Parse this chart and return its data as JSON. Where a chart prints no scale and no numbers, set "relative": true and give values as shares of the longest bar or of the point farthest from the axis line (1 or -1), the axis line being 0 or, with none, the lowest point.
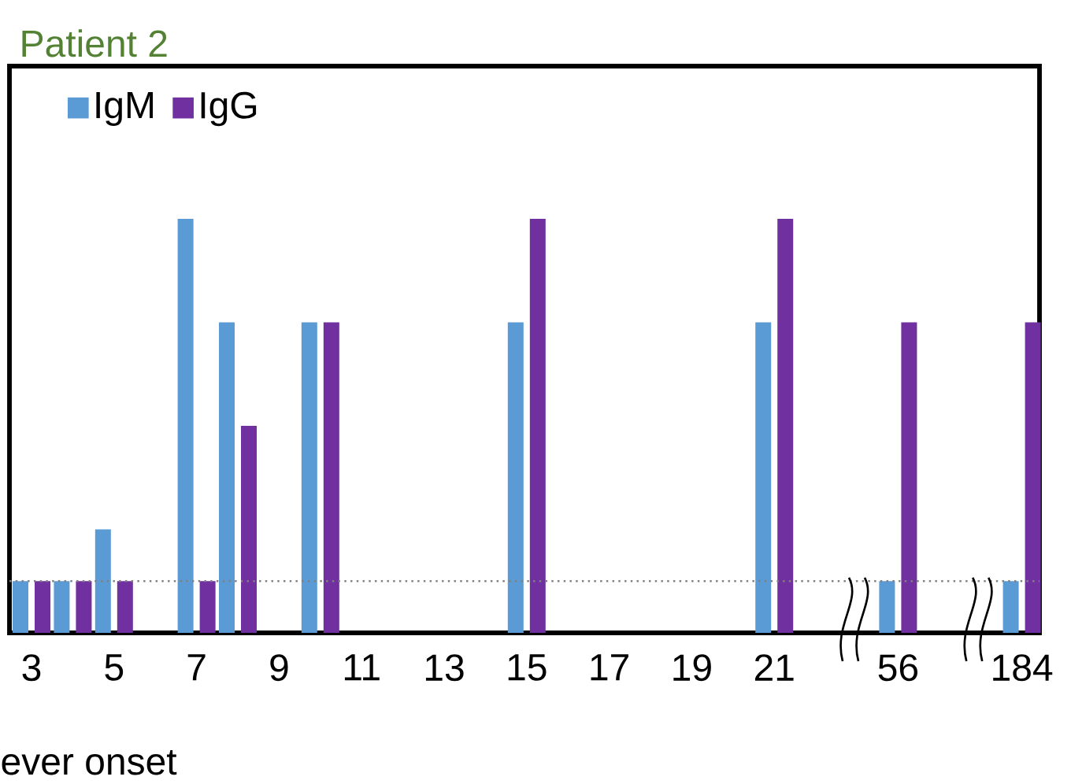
{
  "chart_data": {
    "type": "bar",
    "title": "Patient 2",
    "xlabel": "ever onset",
    "relative": true,
    "legend": "top left",
    "categories": [
      "3",
      null,
      "5",
      null,
      "7",
      null,
      "9",
      null,
      "11",
      null,
      "13",
      null,
      "15",
      null,
      "17",
      null,
      "19",
      null,
      "21",
      null,
      null,
      "56",
      null,
      null,
      "184"
    ],
    "series": [
      {
        "name": "IgM",
        "color": "#5b9bd5",
        "values": [
          0.125,
          0.125,
          0.25,
          null,
          1,
          0.75,
          null,
          0.75,
          null,
          null,
          null,
          null,
          0.75,
          null,
          null,
          null,
          null,
          null,
          0.75,
          null,
          null,
          0.125,
          null,
          null,
          0.125
        ]
      },
      {
        "name": "IgG",
        "color": "#7030a0",
        "values": [
          0.125,
          0.125,
          0.125,
          null,
          0.125,
          0.5,
          null,
          0.75,
          null,
          null,
          null,
          null,
          1,
          null,
          null,
          null,
          null,
          null,
          1,
          null,
          null,
          0.75,
          null,
          null,
          0.75
        ]
      }
    ],
    "ref_lines": [
      {
        "axis": "y",
        "value": 0.125,
        "color": "#808080",
        "line_style": "dotted"
      }
    ]
  }
}
